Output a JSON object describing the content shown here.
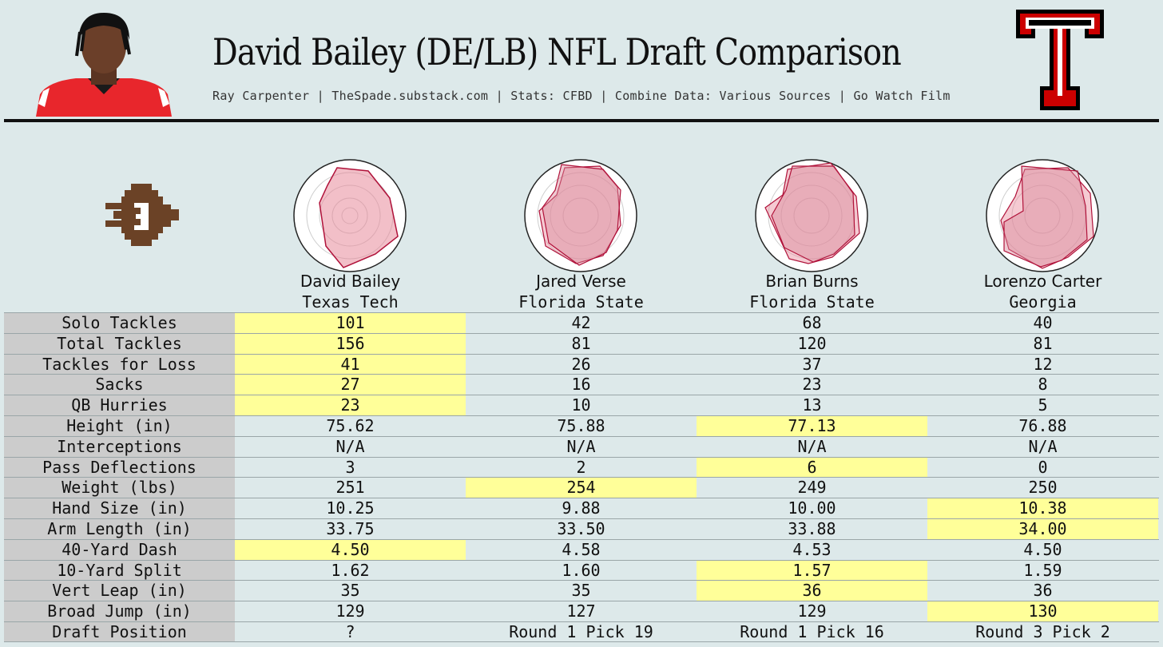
{
  "header": {
    "title": "David Bailey (DE/LB) NFL Draft Comparison",
    "subtitle": "Ray Carpenter | TheSpade.substack.com | Stats: CFBD | Combine Data: Various Sources | Go Watch Film"
  },
  "colors": {
    "background": "#dde9ea",
    "highlight": "#ffff99",
    "label_bg": "#cccccc",
    "radar_stroke": "#b0123a",
    "radar_fill": "#e88a9b",
    "logo_red": "#cc0000"
  },
  "players": [
    {
      "name": "David Bailey",
      "school": "Texas Tech"
    },
    {
      "name": "Jared Verse",
      "school": "Florida State"
    },
    {
      "name": "Brian Burns",
      "school": "Florida State"
    },
    {
      "name": "Lorenzo Carter",
      "school": "Georgia"
    }
  ],
  "stats": [
    {
      "label": "Solo Tackles",
      "values": [
        "101",
        "42",
        "68",
        "40"
      ],
      "best": [
        0
      ]
    },
    {
      "label": "Total Tackles",
      "values": [
        "156",
        "81",
        "120",
        "81"
      ],
      "best": [
        0
      ]
    },
    {
      "label": "Tackles for Loss",
      "values": [
        "41",
        "26",
        "37",
        "12"
      ],
      "best": [
        0
      ]
    },
    {
      "label": "Sacks",
      "values": [
        "27",
        "16",
        "23",
        "8"
      ],
      "best": [
        0
      ]
    },
    {
      "label": "QB Hurries",
      "values": [
        "23",
        "10",
        "13",
        "5"
      ],
      "best": [
        0
      ]
    },
    {
      "label": "Height (in)",
      "values": [
        "75.62",
        "75.88",
        "77.13",
        "76.88"
      ],
      "best": [
        2
      ]
    },
    {
      "label": "Interceptions",
      "values": [
        "N/A",
        "N/A",
        "N/A",
        "N/A"
      ],
      "best": []
    },
    {
      "label": "Pass Deflections",
      "values": [
        "3",
        "2",
        "6",
        "0"
      ],
      "best": [
        2
      ]
    },
    {
      "label": "Weight (lbs)",
      "values": [
        "251",
        "254",
        "249",
        "250"
      ],
      "best": [
        1
      ]
    },
    {
      "label": "Hand Size (in)",
      "values": [
        "10.25",
        "9.88",
        "10.00",
        "10.38"
      ],
      "best": [
        3
      ]
    },
    {
      "label": "Arm Length (in)",
      "values": [
        "33.75",
        "33.50",
        "33.88",
        "34.00"
      ],
      "best": [
        3
      ]
    },
    {
      "label": "40-Yard Dash",
      "values": [
        "4.50",
        "4.58",
        "4.53",
        "4.50"
      ],
      "best": [
        0
      ]
    },
    {
      "label": "10-Yard Split",
      "values": [
        "1.62",
        "1.60",
        "1.57",
        "1.59"
      ],
      "best": [
        2
      ]
    },
    {
      "label": "Vert Leap (in)",
      "values": [
        "35",
        "35",
        "36",
        "36"
      ],
      "best": [
        2
      ]
    },
    {
      "label": "Broad Jump (in)",
      "values": [
        "129",
        "127",
        "129",
        "130"
      ],
      "best": [
        3
      ]
    },
    {
      "label": "Draft Position",
      "values": [
        "?",
        "Round 1 Pick 19",
        "Round 1 Pick 16",
        "Round 3 Pick 2"
      ],
      "best": []
    }
  ]
}
